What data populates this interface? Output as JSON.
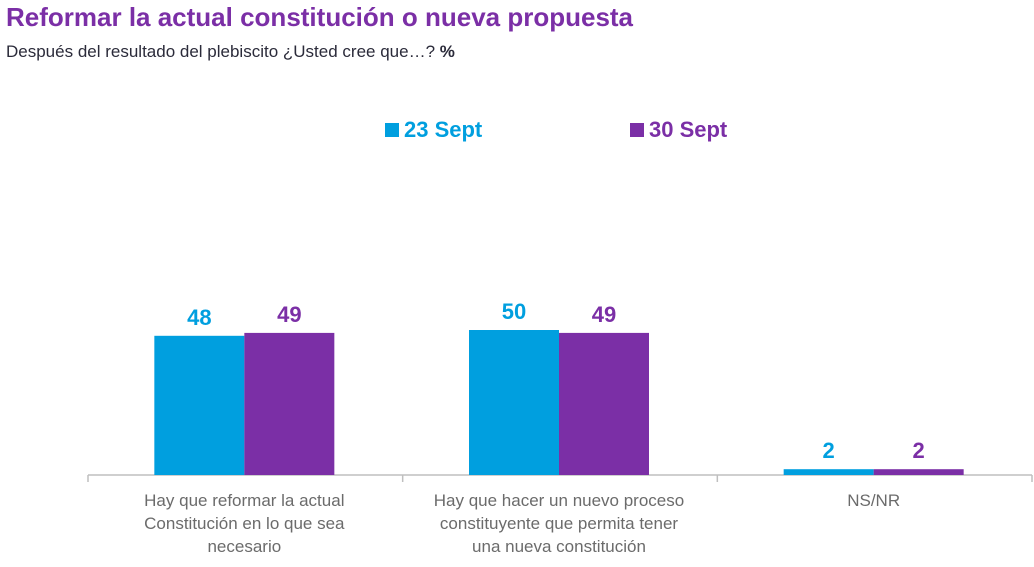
{
  "title": "Reformar la actual constitución o nueva propuesta",
  "subtitle": "Después del resultado del plebiscito ¿Usted cree que…?",
  "subtitle_unit": "%",
  "colors": {
    "title": "#7B2FA6",
    "series1": "#009FDF",
    "series2": "#7B2FA6"
  },
  "chart_data": {
    "type": "bar",
    "categories": [
      [
        "Hay que reformar la actual",
        "Constitución en lo que sea",
        "necesario"
      ],
      [
        "Hay que hacer un nuevo proceso",
        "constituyente que permita tener",
        "una nueva constitución"
      ],
      [
        "NS/NR"
      ]
    ],
    "series": [
      {
        "name": "23 Sept",
        "values": [
          48,
          50,
          2
        ]
      },
      {
        "name": "30 Sept",
        "values": [
          49,
          49,
          2
        ]
      }
    ],
    "ylim": [
      0,
      100
    ],
    "grid": false,
    "legend": "top-center",
    "unit": "%"
  }
}
